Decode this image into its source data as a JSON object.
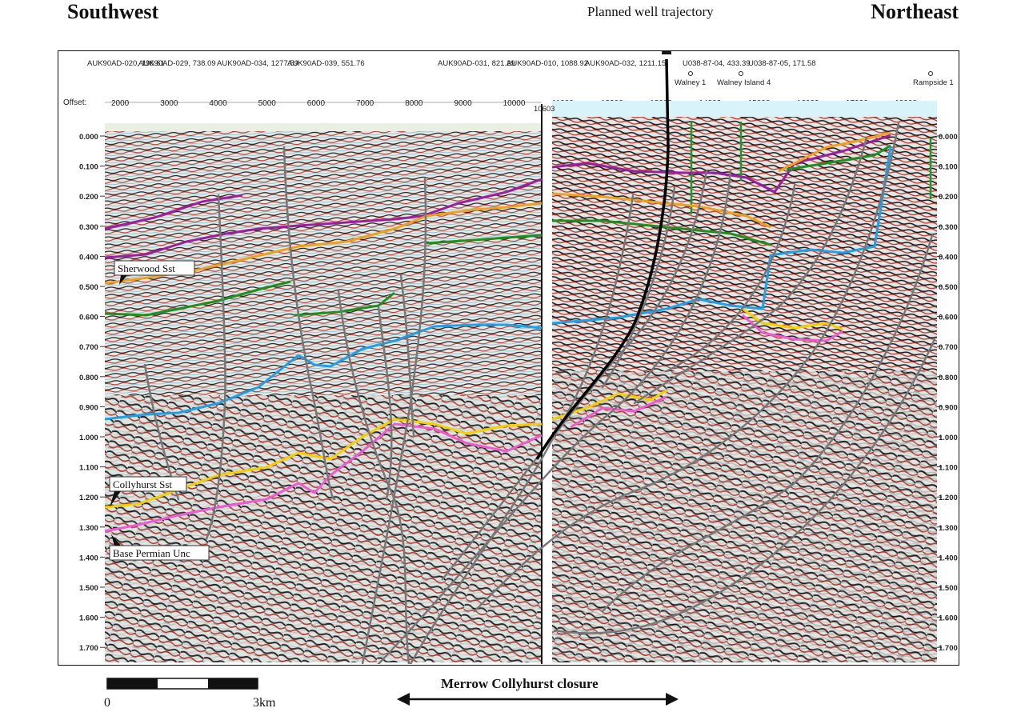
{
  "labels": {
    "southwest": "Southwest",
    "northeast": "Northeast",
    "well_trajectory": "Planned well trajectory",
    "closure": "Merrow Collyhurst closure",
    "scale_zero": "0",
    "scale_end": "3km",
    "offset": "Offset:"
  },
  "header_lines": [
    "AUK90AD-020, 196.61",
    "AUK90AD-029, 738.09",
    "AUK90AD-034, 1277.59",
    "AUK90AD-039, 551.76",
    "AUK90AD-031, 821.29",
    "AUK90AD-010, 1088.92",
    "AUK90AD-032, 1211.15",
    "U038-87-04, 433.39",
    "U038-87-05, 171.58"
  ],
  "section_break_label": "10603",
  "wells": [
    {
      "name": "Walney 1",
      "label": "Walney 1"
    },
    {
      "name": "Walney Island 4",
      "label": "Walney Island 4"
    },
    {
      "name": "Rampside 1",
      "label": "Rampside 1"
    }
  ],
  "offset_ticks": [
    "2000",
    "3000",
    "4000",
    "5000",
    "6000",
    "7000",
    "8000",
    "9000",
    "10000",
    "11000",
    "12000",
    "13000",
    "14000",
    "15000",
    "16000",
    "17000",
    "18000"
  ],
  "time_ticks": [
    "0.000",
    "0.100",
    "0.200",
    "0.300",
    "0.400",
    "0.500",
    "0.600",
    "0.700",
    "0.800",
    "0.900",
    "1.000",
    "1.100",
    "1.200",
    "1.300",
    "1.400",
    "1.500",
    "1.600",
    "1.700"
  ],
  "horizon_labels": [
    "Sherwood Sst",
    "Collyhurst Sst",
    "Base Permian Unc"
  ],
  "colors": {
    "purple": "#9b1f9f",
    "orange": "#f0a020",
    "green": "#1f8f1f",
    "blue": "#1fa0e8",
    "yellow": "#f5d000",
    "magenta": "#f05ad0",
    "fault": "#7a7a7a",
    "sky": "#d8f4fa"
  }
}
